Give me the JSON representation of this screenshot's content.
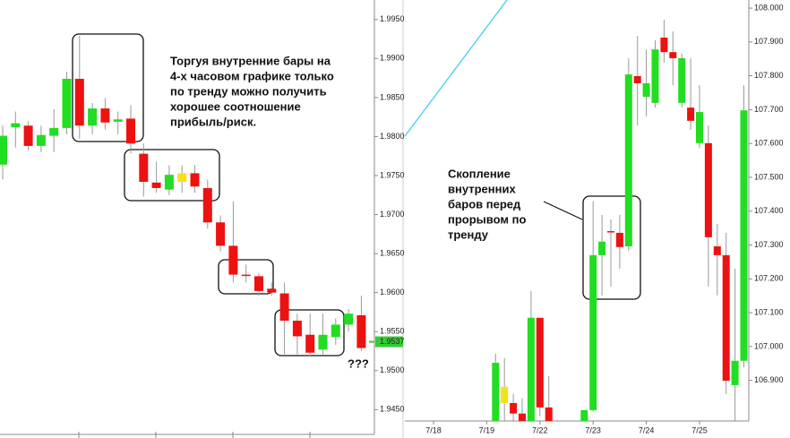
{
  "chart_data": [
    {
      "type": "candlestick",
      "open": [
        1.9764,
        1.9812,
        1.9814,
        1.9788,
        1.9801,
        1.9811,
        1.9874,
        1.9814,
        1.9836,
        1.9819,
        1.9823,
        1.9778,
        1.9741,
        1.9732,
        1.9742,
        1.9753,
        1.9734,
        1.969,
        1.966,
        1.9623,
        1.9621,
        1.9605,
        1.9599,
        1.9564,
        1.9546,
        1.9527,
        1.9543,
        1.9559,
        1.9571
      ],
      "high": [
        1.9814,
        1.9832,
        1.982,
        1.9814,
        1.9835,
        1.9883,
        1.9929,
        1.9843,
        1.9849,
        1.9832,
        1.984,
        1.9791,
        1.9768,
        1.9763,
        1.9763,
        1.9763,
        1.9745,
        1.9699,
        1.9717,
        1.9636,
        1.9625,
        1.9613,
        1.9613,
        1.9573,
        1.9573,
        1.9573,
        1.9567,
        1.9579,
        1.9596
      ],
      "low": [
        1.9745,
        1.9786,
        1.9782,
        1.978,
        1.978,
        1.9803,
        1.9797,
        1.9803,
        1.9809,
        1.9803,
        1.9778,
        1.9723,
        1.9728,
        1.9725,
        1.9728,
        1.9728,
        1.9682,
        1.9653,
        1.9613,
        1.9613,
        1.9596,
        1.9596,
        1.9521,
        1.9521,
        1.9518,
        1.9521,
        1.9533,
        1.955,
        1.9525
      ],
      "close": [
        1.9801,
        1.9817,
        1.9788,
        1.9802,
        1.9811,
        1.9874,
        1.9814,
        1.9836,
        1.9818,
        1.9822,
        1.9791,
        1.9742,
        1.9734,
        1.9751,
        1.9753,
        1.9736,
        1.969,
        1.966,
        1.9623,
        1.9622,
        1.9602,
        1.96,
        1.9564,
        1.9544,
        1.9523,
        1.9546,
        1.9559,
        1.9573,
        1.9529
      ],
      "colors": [
        "#22dd22",
        "#22dd22",
        "#ee1111",
        "#22dd22",
        "#22dd22",
        "#22dd22",
        "#ee1111",
        "#22dd22",
        "#ee1111",
        "#22dd22",
        "#ee1111",
        "#ee1111",
        "#ee1111",
        "#22dd22",
        "#f2e21a",
        "#ee1111",
        "#ee1111",
        "#ee1111",
        "#ee1111",
        "#ee1111",
        "#ee1111",
        "#ee1111",
        "#ee1111",
        "#ee1111",
        "#ee1111",
        "#22dd22",
        "#22dd22",
        "#22dd22",
        "#ee1111"
      ],
      "ylim": [
        1.9424,
        1.9975
      ],
      "yticks": [
        {
          "value": 1.945,
          "label": "1.9450"
        },
        {
          "value": 1.95,
          "label": "1.9500"
        },
        {
          "value": 1.955,
          "label": "1.9550"
        },
        {
          "value": 1.96,
          "label": "1.9600"
        },
        {
          "value": 1.965,
          "label": "1.9650"
        },
        {
          "value": 1.97,
          "label": "1.9700"
        },
        {
          "value": 1.975,
          "label": "1.9750"
        },
        {
          "value": 1.98,
          "label": "1.9800"
        },
        {
          "value": 1.985,
          "label": "1.9850"
        },
        {
          "value": 1.99,
          "label": "1.9900"
        },
        {
          "value": 1.995,
          "label": "1.9950"
        }
      ],
      "last_price": 1.9537,
      "last_price_color": "#33cc33",
      "annotation": [
        "Торгуя внутренние бары на",
        "4-х часовом графике только",
        "по тренду можно получить",
        "хорошее соотношение",
        "прибыль/риск."
      ],
      "note": "???"
    },
    {
      "type": "candlestick",
      "categories": [
        "7/18",
        null,
        null,
        null,
        null,
        null,
        "7/19",
        null,
        null,
        null,
        null,
        null,
        "7/22",
        null,
        null,
        null,
        null,
        null,
        "7/23",
        null,
        null,
        null,
        null,
        null,
        "7/24",
        null,
        null,
        null,
        null,
        null,
        "7/25",
        null,
        null,
        null,
        null,
        null
      ],
      "open": [
        null,
        null,
        null,
        null,
        null,
        null,
        null,
        106.78,
        106.833,
        106.833,
        106.802,
        106.78,
        107.085,
        106.82,
        null,
        null,
        null,
        106.78,
        106.812,
        107.27,
        107.341,
        107.336,
        107.296,
        107.799,
        107.738,
        107.72,
        107.913,
        107.87,
        107.72,
        107.706,
        107.601,
        107.601,
        107.296,
        107.27,
        106.886,
        106.958
      ],
      "high": [
        null,
        null,
        null,
        null,
        null,
        null,
        null,
        106.979,
        106.966,
        106.86,
        106.847,
        107.164,
        107.085,
        106.913,
        null,
        null,
        null,
        106.812,
        107.429,
        107.389,
        107.376,
        107.389,
        107.852,
        107.918,
        107.878,
        107.905,
        107.966,
        107.931,
        107.865,
        107.852,
        107.772,
        107.653,
        107.362,
        107.336,
        107.23,
        107.772
      ],
      "low": [
        null,
        null,
        null,
        null,
        null,
        null,
        null,
        106.78,
        106.78,
        106.78,
        106.78,
        106.78,
        106.794,
        106.78,
        null,
        null,
        null,
        106.78,
        106.807,
        107.151,
        107.177,
        107.23,
        107.283,
        107.653,
        107.68,
        107.706,
        107.839,
        107.772,
        107.706,
        107.64,
        107.587,
        107.177,
        107.151,
        106.86,
        106.78,
        106.939
      ],
      "close": [
        null,
        null,
        null,
        null,
        null,
        null,
        null,
        106.952,
        106.881,
        106.802,
        106.78,
        107.085,
        106.82,
        106.78,
        null,
        null,
        null,
        106.812,
        107.27,
        107.31,
        107.339,
        107.294,
        107.804,
        107.778,
        107.778,
        107.878,
        107.87,
        107.852,
        107.852,
        107.667,
        107.693,
        107.323,
        107.27,
        106.899,
        106.958,
        107.698
      ],
      "colors": [
        null,
        null,
        null,
        null,
        null,
        null,
        null,
        "#22dd22",
        "#f2e21a",
        "#ee1111",
        "#ee1111",
        "#22dd22",
        "#ee1111",
        "#ee1111",
        null,
        null,
        null,
        "#22dd22",
        "#22dd22",
        "#22dd22",
        "#ee1111",
        "#ee1111",
        "#22dd22",
        "#ee1111",
        "#22dd22",
        "#22dd22",
        "#ee1111",
        "#ee1111",
        "#22dd22",
        "#ee1111",
        "#22dd22",
        "#ee1111",
        "#ee1111",
        "#ee1111",
        "#22dd22",
        "#22dd22"
      ],
      "ylim": [
        106.78,
        108.024
      ],
      "yticks": [
        {
          "value": 106.9,
          "label": "106.900"
        },
        {
          "value": 107,
          "label": "107.000"
        },
        {
          "value": 107.1,
          "label": "107.100"
        },
        {
          "value": 107.2,
          "label": "107.200"
        },
        {
          "value": 107.3,
          "label": "107.300"
        },
        {
          "value": 107.4,
          "label": "107.400"
        },
        {
          "value": 107.5,
          "label": "107.500"
        },
        {
          "value": 107.6,
          "label": "107.600"
        },
        {
          "value": 107.7,
          "label": "107.700"
        },
        {
          "value": 107.8,
          "label": "107.800"
        },
        {
          "value": 107.9,
          "label": "107.900"
        },
        {
          "value": 108,
          "label": "108.000"
        }
      ],
      "annotation": [
        "Скопление",
        "внутренних",
        "баров перед",
        "прорывом по",
        "тренду"
      ]
    }
  ]
}
